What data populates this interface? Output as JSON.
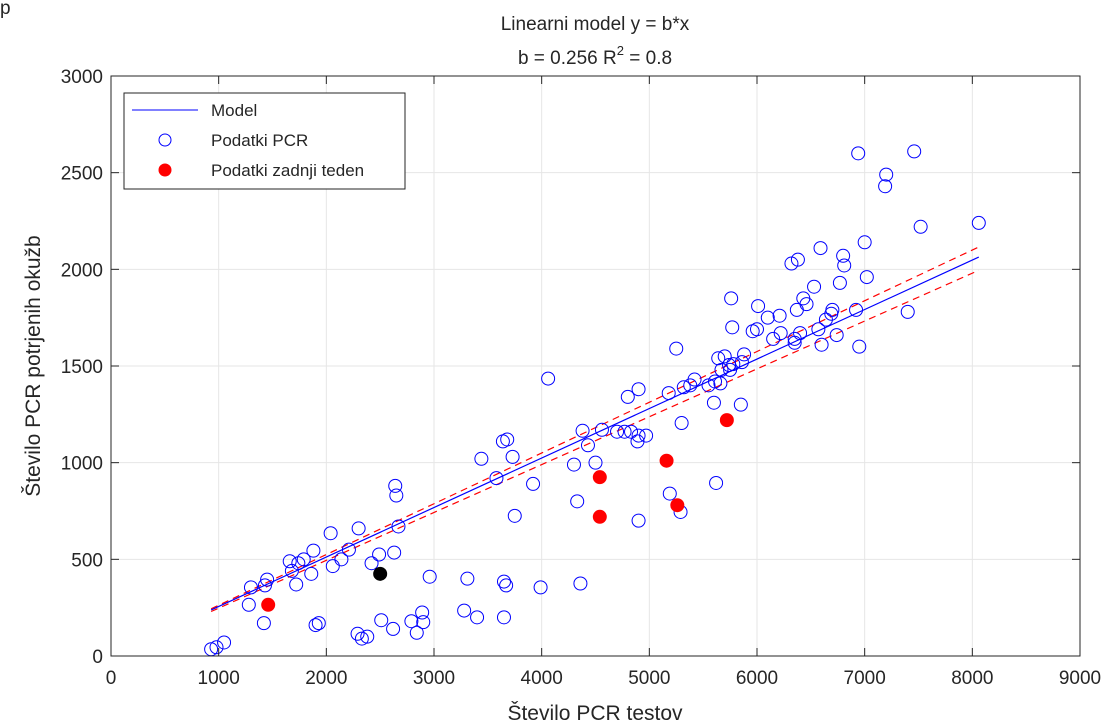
{
  "corner_text": "p",
  "chart_data": {
    "type": "scatter",
    "title": "Linearni model y = b*x",
    "subtitle": {
      "prefix": "b = 0.256 R",
      "superscript": "2",
      "suffix": " = 0.8"
    },
    "xlabel": "Število PCR testov",
    "ylabel": "Število PCR potrjenih okužb",
    "xlim": [
      0,
      9000
    ],
    "ylim": [
      0,
      3000
    ],
    "xticks": [
      0,
      1000,
      2000,
      3000,
      4000,
      5000,
      6000,
      7000,
      8000,
      9000
    ],
    "yticks": [
      0,
      500,
      1000,
      1500,
      2000,
      2500,
      3000
    ],
    "grid": true,
    "legend_position": "top-left",
    "legend": [
      "Model",
      "Podatki PCR",
      "Podatki zadnji teden"
    ],
    "colors": {
      "model": "#0000ff",
      "pcr": "#0000ff",
      "last_week": "#ff0000",
      "confidence": "#ff0000",
      "highlight": "#000000",
      "grid": "#e6e6e6"
    },
    "model": {
      "slope": 0.256,
      "x": [
        930,
        8060
      ]
    },
    "confidence_band": {
      "x": [
        930,
        8060
      ],
      "upper_slope": 0.2625,
      "lower_slope": 0.2475
    },
    "series": [
      {
        "name": "Podatki PCR",
        "marker": "open-circle",
        "points": [
          [
            930,
            35
          ],
          [
            980,
            45
          ],
          [
            1050,
            70
          ],
          [
            1280,
            265
          ],
          [
            1300,
            355
          ],
          [
            1420,
            170
          ],
          [
            1430,
            365
          ],
          [
            1450,
            395
          ],
          [
            1660,
            490
          ],
          [
            1680,
            440
          ],
          [
            1720,
            370
          ],
          [
            1740,
            480
          ],
          [
            1790,
            500
          ],
          [
            1860,
            425
          ],
          [
            1880,
            545
          ],
          [
            1900,
            160
          ],
          [
            1930,
            170
          ],
          [
            2040,
            635
          ],
          [
            2060,
            465
          ],
          [
            2140,
            500
          ],
          [
            2210,
            550
          ],
          [
            2290,
            115
          ],
          [
            2300,
            660
          ],
          [
            2330,
            90
          ],
          [
            2380,
            100
          ],
          [
            2420,
            480
          ],
          [
            2490,
            525
          ],
          [
            2510,
            185
          ],
          [
            2620,
            140
          ],
          [
            2630,
            535
          ],
          [
            2640,
            880
          ],
          [
            2650,
            830
          ],
          [
            2670,
            670
          ],
          [
            2790,
            180
          ],
          [
            2840,
            120
          ],
          [
            2890,
            225
          ],
          [
            2900,
            175
          ],
          [
            2960,
            410
          ],
          [
            3280,
            235
          ],
          [
            3310,
            400
          ],
          [
            3400,
            200
          ],
          [
            3440,
            1020
          ],
          [
            3580,
            920
          ],
          [
            3640,
            1110
          ],
          [
            3650,
            200
          ],
          [
            3650,
            385
          ],
          [
            3670,
            365
          ],
          [
            3680,
            1120
          ],
          [
            3730,
            1030
          ],
          [
            3750,
            725
          ],
          [
            3920,
            890
          ],
          [
            3990,
            355
          ],
          [
            4060,
            1435
          ],
          [
            4300,
            990
          ],
          [
            4330,
            800
          ],
          [
            4360,
            375
          ],
          [
            4380,
            1165
          ],
          [
            4430,
            1090
          ],
          [
            4500,
            1000
          ],
          [
            4560,
            1170
          ],
          [
            4700,
            1160
          ],
          [
            4770,
            1160
          ],
          [
            4800,
            1340
          ],
          [
            4830,
            1160
          ],
          [
            4890,
            1110
          ],
          [
            4900,
            1140
          ],
          [
            4900,
            1380
          ],
          [
            4900,
            700
          ],
          [
            4970,
            1140
          ],
          [
            5180,
            1360
          ],
          [
            5190,
            840
          ],
          [
            5250,
            1590
          ],
          [
            5290,
            745
          ],
          [
            5300,
            1205
          ],
          [
            5320,
            1390
          ],
          [
            5380,
            1400
          ],
          [
            5420,
            1430
          ],
          [
            5550,
            1400
          ],
          [
            5600,
            1310
          ],
          [
            5610,
            1420
          ],
          [
            5620,
            895
          ],
          [
            5640,
            1540
          ],
          [
            5660,
            1410
          ],
          [
            5670,
            1480
          ],
          [
            5700,
            1550
          ],
          [
            5740,
            1505
          ],
          [
            5750,
            1480
          ],
          [
            5760,
            1850
          ],
          [
            5770,
            1700
          ],
          [
            5780,
            1510
          ],
          [
            5850,
            1300
          ],
          [
            5860,
            1520
          ],
          [
            5880,
            1560
          ],
          [
            5960,
            1680
          ],
          [
            6000,
            1690
          ],
          [
            6010,
            1810
          ],
          [
            6100,
            1750
          ],
          [
            6150,
            1640
          ],
          [
            6210,
            1760
          ],
          [
            6220,
            1670
          ],
          [
            6320,
            2030
          ],
          [
            6350,
            1640
          ],
          [
            6350,
            1620
          ],
          [
            6370,
            1790
          ],
          [
            6380,
            2050
          ],
          [
            6400,
            1670
          ],
          [
            6430,
            1850
          ],
          [
            6460,
            1820
          ],
          [
            6530,
            1910
          ],
          [
            6570,
            1690
          ],
          [
            6590,
            2110
          ],
          [
            6600,
            1610
          ],
          [
            6640,
            1740
          ],
          [
            6690,
            1770
          ],
          [
            6700,
            1790
          ],
          [
            6740,
            1660
          ],
          [
            6770,
            1930
          ],
          [
            6800,
            2070
          ],
          [
            6810,
            2020
          ],
          [
            6920,
            1790
          ],
          [
            6940,
            2600
          ],
          [
            6950,
            1600
          ],
          [
            7000,
            2140
          ],
          [
            7020,
            1960
          ],
          [
            7190,
            2430
          ],
          [
            7200,
            2490
          ],
          [
            7400,
            1780
          ],
          [
            7460,
            2610
          ],
          [
            7520,
            2220
          ],
          [
            8060,
            2240
          ]
        ]
      },
      {
        "name": "Podatki zadnji teden",
        "marker": "filled-circle",
        "points": [
          [
            1460,
            265
          ],
          [
            4540,
            925
          ],
          [
            4540,
            720
          ],
          [
            5160,
            1010
          ],
          [
            5260,
            780
          ],
          [
            5720,
            1220
          ]
        ]
      },
      {
        "marker": "filled-circle",
        "points": [
          [
            2500,
            425
          ]
        ]
      }
    ]
  }
}
